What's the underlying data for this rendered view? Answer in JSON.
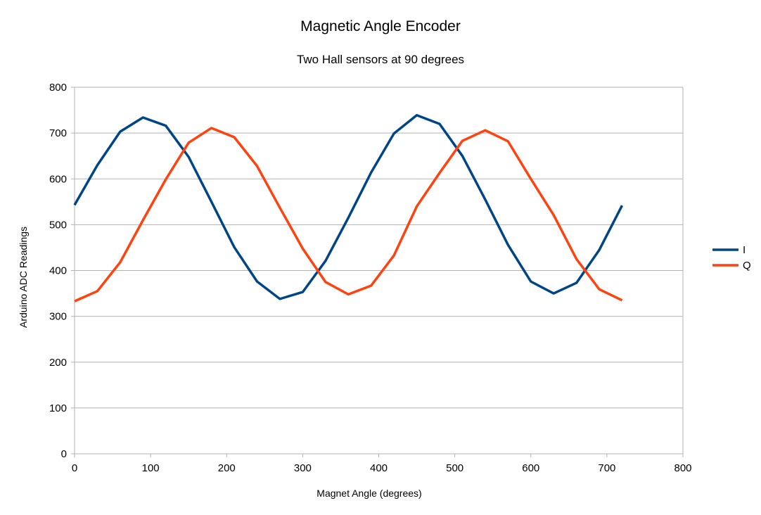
{
  "chart_data": {
    "type": "line",
    "title": "Magnetic Angle Encoder",
    "subtitle": "Two Hall sensors at 90 degrees",
    "xlabel": "Magnet Angle (degrees)",
    "ylabel": "Arduino ADC Readings",
    "xlim": [
      0,
      800
    ],
    "ylim": [
      0,
      800
    ],
    "xticks": [
      0,
      100,
      200,
      300,
      400,
      500,
      600,
      700,
      800
    ],
    "yticks": [
      0,
      100,
      200,
      300,
      400,
      500,
      600,
      700,
      800
    ],
    "grid": "horizontal",
    "legend": "right",
    "x": [
      0,
      30,
      60,
      90,
      120,
      150,
      180,
      210,
      240,
      270,
      300,
      330,
      360,
      390,
      420,
      450,
      480,
      510,
      540,
      570,
      600,
      630,
      660,
      690,
      720
    ],
    "series": [
      {
        "name": "I",
        "color": "#004586",
        "values": [
          543,
          630,
          703,
          734,
          716,
          648,
          550,
          451,
          376,
          338,
          353,
          421,
          515,
          614,
          699,
          739,
          720,
          650,
          555,
          456,
          376,
          350,
          373,
          445,
          542
        ]
      },
      {
        "name": "Q",
        "color": "#ff420e",
        "values": [
          333,
          355,
          418,
          510,
          599,
          679,
          711,
          691,
          628,
          537,
          448,
          375,
          348,
          367,
          433,
          540,
          613,
          683,
          706,
          682,
          600,
          521,
          425,
          359,
          335
        ]
      }
    ]
  }
}
